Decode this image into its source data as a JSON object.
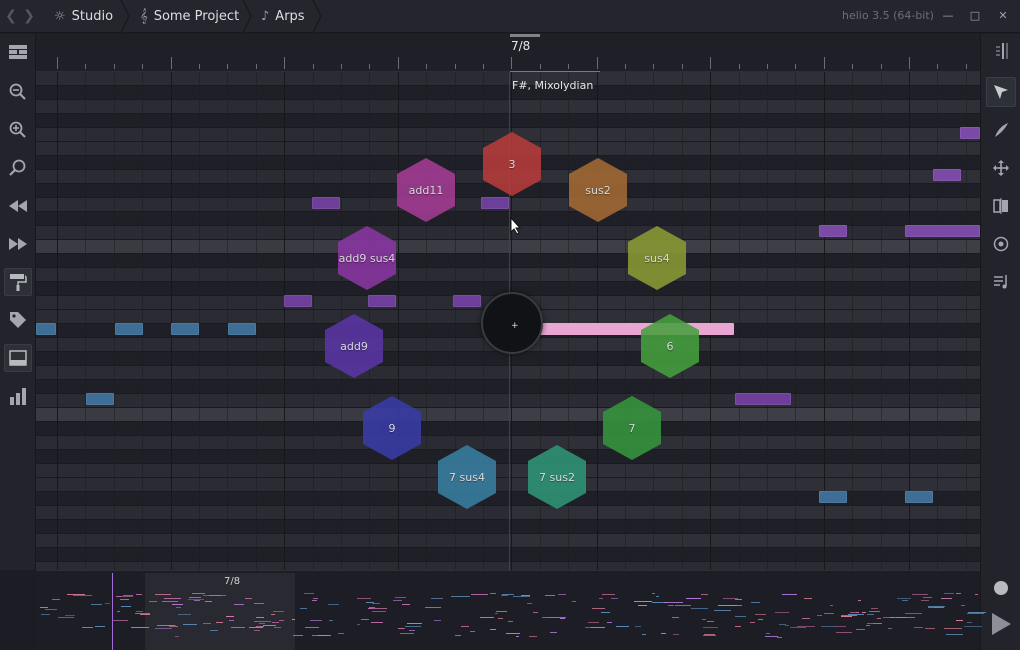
{
  "titlebar": {
    "breadcrumbs": [
      {
        "label": "Studio",
        "icon": "sun-icon"
      },
      {
        "label": "Some Project",
        "icon": "treble-clef-icon"
      },
      {
        "label": "Arps",
        "icon": "music-note-icon"
      }
    ],
    "version": "helio 3.5 (64-bit)"
  },
  "ruler": {
    "bar_label": "7/8"
  },
  "roll": {
    "key_label": "F#, Mixolydian"
  },
  "chord_tool": {
    "chords": [
      {
        "label": "3",
        "color": "#b83c3c"
      },
      {
        "label": "add11",
        "color": "#a43c94"
      },
      {
        "label": "sus2",
        "color": "#a46a34"
      },
      {
        "label": "add9 sus4",
        "color": "#8a36a2"
      },
      {
        "label": "sus4",
        "color": "#8a9a34"
      },
      {
        "label": "add9",
        "color": "#5a36a6"
      },
      {
        "label": "6",
        "color": "#46a03e"
      },
      {
        "label": "9",
        "color": "#3a3ca8"
      },
      {
        "label": "7",
        "color": "#36963e"
      },
      {
        "label": "7 sus4",
        "color": "#3a7fa2"
      },
      {
        "label": "7 sus2",
        "color": "#2f9678"
      }
    ]
  },
  "minimap": {
    "bar_label": "7/8"
  },
  "colors": {
    "accent": "#e07a9c",
    "selected_note": "#e9a6d2",
    "purple_note": "#7a4aa6",
    "blue_note": "#3e6e96"
  }
}
